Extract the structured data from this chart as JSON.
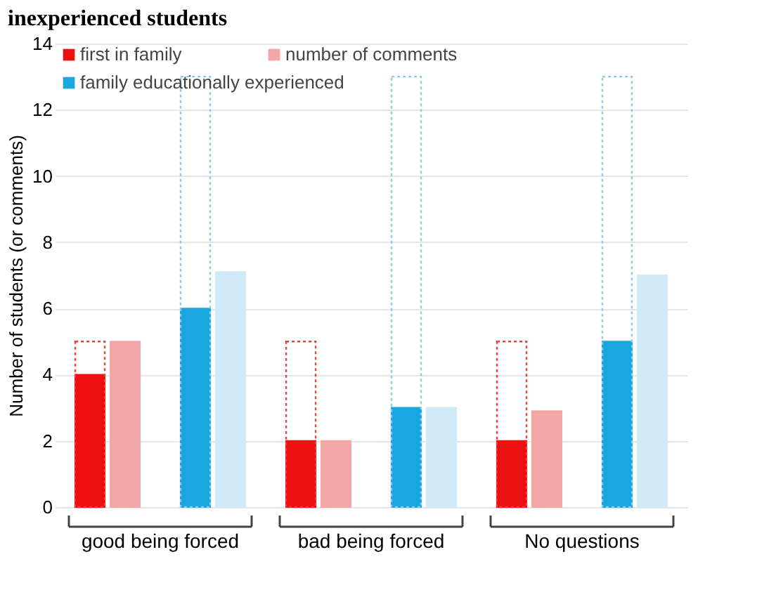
{
  "chart_data": {
    "type": "bar",
    "title": "inexperienced students",
    "ylabel": "Number of students (or comments)",
    "categories": [
      "good being forced",
      "bad being forced",
      "No questions"
    ],
    "series": [
      {
        "color": "#e8403a",
        "line_style": "dotted",
        "values": [
          5,
          5,
          5
        ]
      },
      {
        "name": "first in family",
        "color": "#ee1111",
        "values": [
          4,
          2,
          2
        ]
      },
      {
        "name": "number of comments",
        "color": "#f2a6a6",
        "values": [
          5,
          2,
          2.9
        ]
      },
      {
        "color": "#8ccbe8",
        "line_style": "dotted",
        "values": [
          13,
          13,
          13
        ]
      },
      {
        "name": "family  educationally experienced",
        "color": "#1aa7e0",
        "values": [
          6,
          3,
          5
        ]
      },
      {
        "color": "#cfeaf6",
        "values": [
          7.1,
          3,
          7
        ]
      }
    ],
    "ylim": [
      0,
      14
    ],
    "yticks": [
      0,
      2,
      4,
      6,
      8,
      10,
      12,
      14
    ],
    "grid": "y",
    "legend": "top left"
  }
}
